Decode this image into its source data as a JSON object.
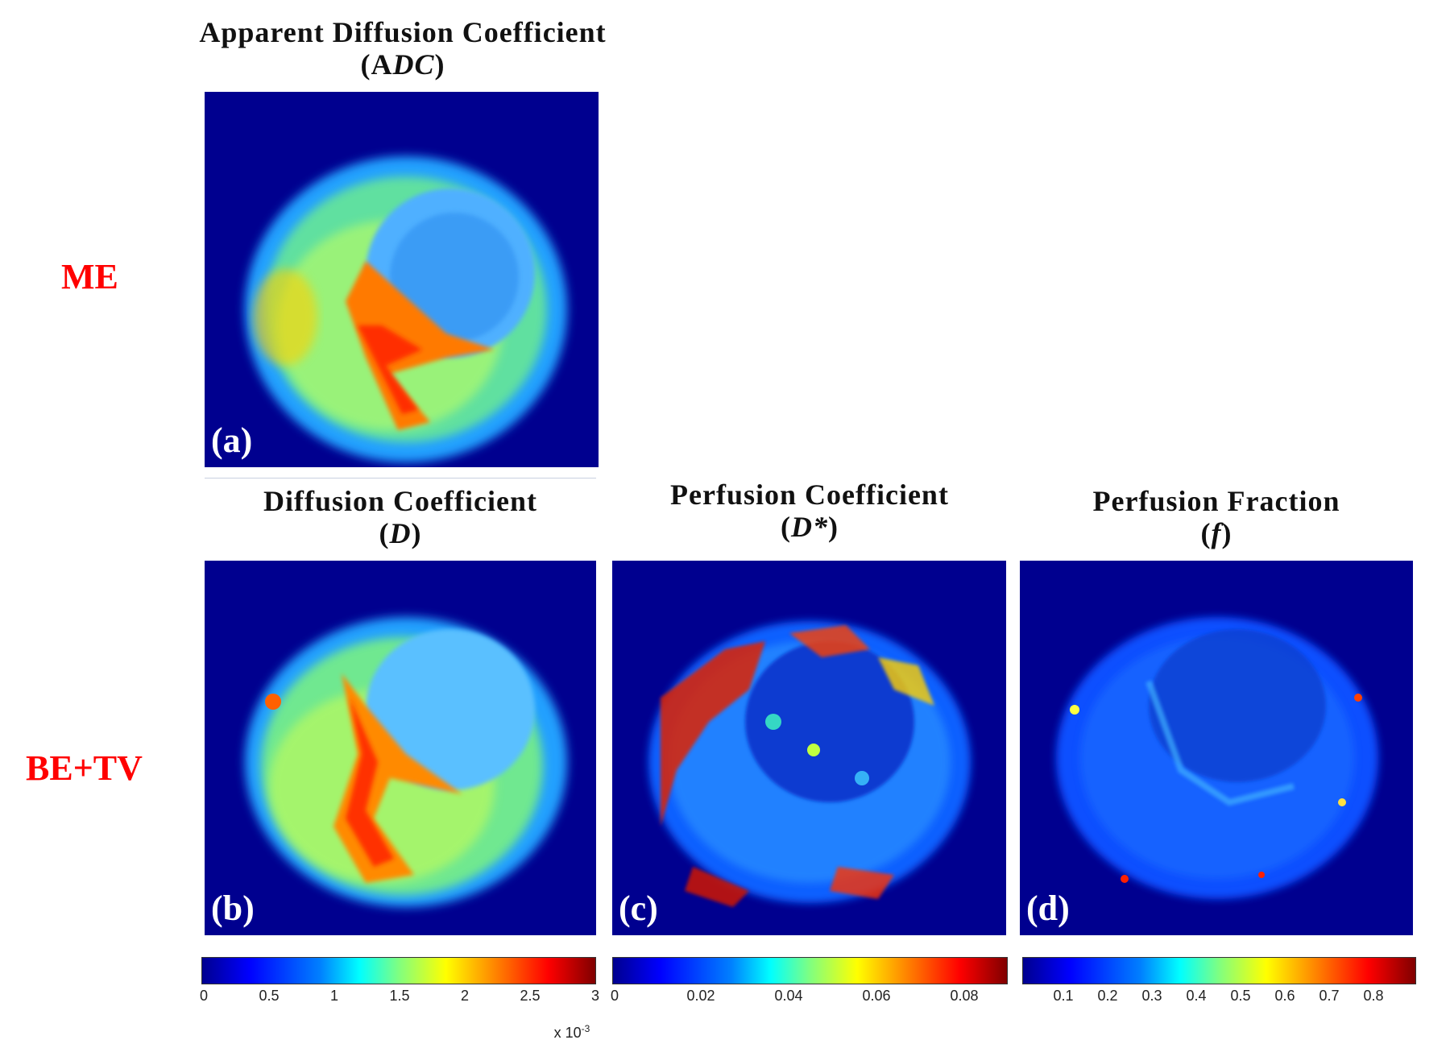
{
  "row_labels": {
    "me": "ME",
    "betv": "BE+TV"
  },
  "titles": {
    "a": {
      "line1": "Apparent  Diffusion  Coefficient",
      "open": "(A",
      "sym": "DC",
      "close": ")"
    },
    "b": {
      "line1": "Diffusion  Coefficient",
      "open": "(",
      "sym": "D",
      "close": ")"
    },
    "c": {
      "line1": "Perfusion  Coefficient",
      "open": "(",
      "sym": "D*",
      "close": ")"
    },
    "d": {
      "line1": "Perfusion  Fraction",
      "open": "(",
      "sym": "f",
      "close": ")"
    }
  },
  "panel_labels": {
    "a": "(a)",
    "b": "(b)",
    "c": "(c)",
    "d": "(d)"
  },
  "colorbars": {
    "d": {
      "ticks": [
        "0",
        "0.5",
        "1",
        "1.5",
        "2",
        "2.5",
        "3"
      ],
      "multiplier": "x 10",
      "exponent": "-3"
    },
    "dstar": {
      "ticks": [
        "0",
        "0.02",
        "0.04",
        "0.06",
        "0.08"
      ]
    },
    "f": {
      "ticks": [
        "0.1",
        "0.2",
        "0.3",
        "0.4",
        "0.5",
        "0.6",
        "0.7",
        "0.8"
      ]
    }
  },
  "colors": {
    "row_label": "#ff0000",
    "background": "#00008f"
  }
}
